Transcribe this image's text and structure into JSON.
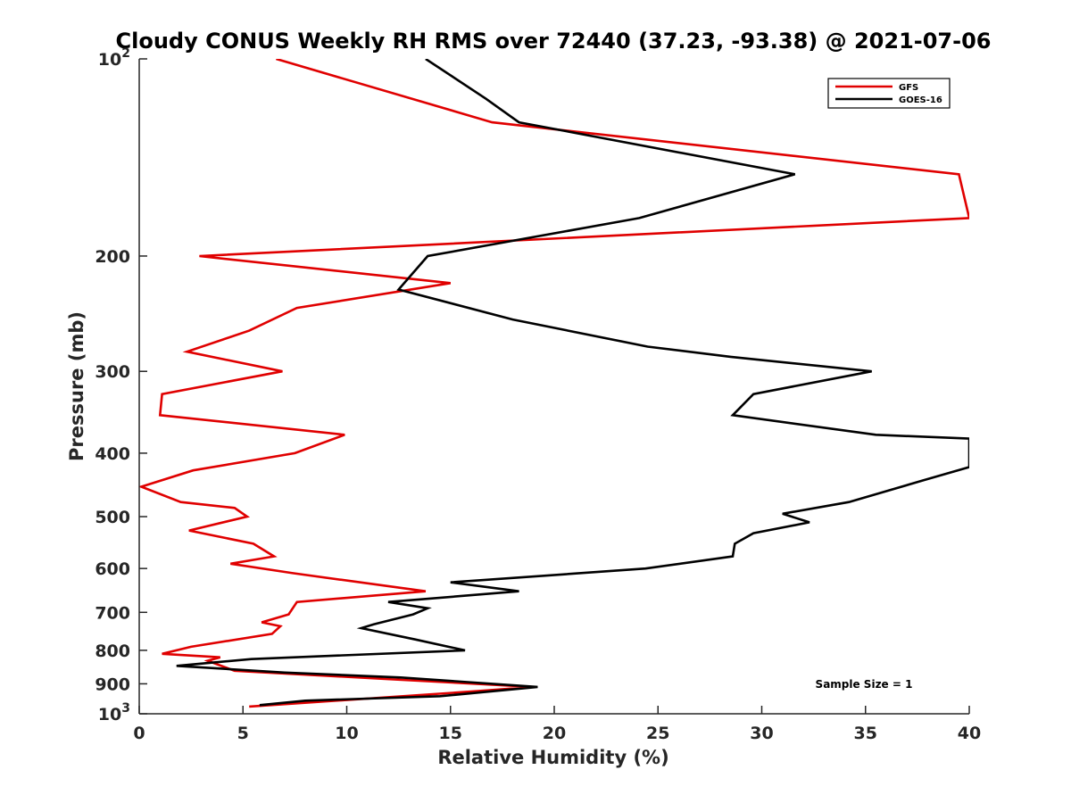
{
  "chart_data": {
    "type": "line",
    "title": "Cloudy CONUS Weekly RH RMS over 72440 (37.23, -93.38) @ 2021-07-06",
    "xlabel": "Relative Humidity (%)",
    "ylabel": "Pressure (mb)",
    "xlim": [
      0,
      40
    ],
    "ylim": [
      100,
      1000
    ],
    "y_scale": "log",
    "y_reversed": true,
    "x_ticks": [
      0,
      5,
      10,
      15,
      20,
      25,
      30,
      35,
      40
    ],
    "x_tick_labels": [
      "0",
      "5",
      "10",
      "15",
      "20",
      "25",
      "30",
      "35",
      "40"
    ],
    "y_ticks": [
      100,
      200,
      300,
      400,
      500,
      600,
      700,
      800,
      900,
      1000
    ],
    "y_tick_labels": [
      {
        "base": "10",
        "exp": "2"
      },
      {
        "base": "200"
      },
      {
        "base": "300"
      },
      {
        "base": "400"
      },
      {
        "base": "500"
      },
      {
        "base": "600"
      },
      {
        "base": "700"
      },
      {
        "base": "800"
      },
      {
        "base": "900"
      },
      {
        "base": "10",
        "exp": "3"
      }
    ],
    "grid": false,
    "legend_position": "top-right",
    "annotation": "Sample Size = 1",
    "series": [
      {
        "name": "GFS",
        "color": "#e00000",
        "points": [
          [
            6.6,
            100
          ],
          [
            17.0,
            125
          ],
          [
            39.5,
            150
          ],
          [
            40.0,
            175
          ],
          [
            2.9,
            200
          ],
          [
            15.0,
            220
          ],
          [
            7.6,
            240
          ],
          [
            5.3,
            260
          ],
          [
            2.3,
            280
          ],
          [
            6.9,
            300
          ],
          [
            1.1,
            325
          ],
          [
            1.0,
            350
          ],
          [
            9.9,
            375
          ],
          [
            7.5,
            400
          ],
          [
            2.6,
            425
          ],
          [
            0.1,
            450
          ],
          [
            2.0,
            475
          ],
          [
            4.6,
            485
          ],
          [
            5.2,
            500
          ],
          [
            2.4,
            525
          ],
          [
            5.5,
            550
          ],
          [
            6.5,
            575
          ],
          [
            4.4,
            590
          ],
          [
            7.4,
            610
          ],
          [
            13.8,
            650
          ],
          [
            7.6,
            675
          ],
          [
            7.2,
            705
          ],
          [
            5.9,
            725
          ],
          [
            6.8,
            735
          ],
          [
            6.4,
            755
          ],
          [
            2.5,
            790
          ],
          [
            1.1,
            810
          ],
          [
            3.9,
            820
          ],
          [
            3.3,
            830
          ],
          [
            4.6,
            860
          ],
          [
            19.0,
            910
          ],
          [
            16.0,
            925
          ],
          [
            5.3,
            975
          ]
        ]
      },
      {
        "name": "GOES-16",
        "color": "#000000",
        "points": [
          [
            13.8,
            100
          ],
          [
            16.7,
            115
          ],
          [
            18.3,
            125
          ],
          [
            31.6,
            150
          ],
          [
            24.1,
            175
          ],
          [
            13.9,
            200
          ],
          [
            12.5,
            225
          ],
          [
            18.0,
            250
          ],
          [
            24.5,
            275
          ],
          [
            28.5,
            285
          ],
          [
            35.3,
            300
          ],
          [
            29.6,
            325
          ],
          [
            28.6,
            350
          ],
          [
            35.5,
            375
          ],
          [
            40.0,
            380
          ],
          [
            40.0,
            420
          ],
          [
            37.8,
            440
          ],
          [
            34.2,
            475
          ],
          [
            31.0,
            495
          ],
          [
            32.3,
            510
          ],
          [
            29.6,
            530
          ],
          [
            28.7,
            550
          ],
          [
            28.6,
            575
          ],
          [
            24.4,
            600
          ],
          [
            15.0,
            630
          ],
          [
            18.3,
            650
          ],
          [
            12.0,
            675
          ],
          [
            13.9,
            690
          ],
          [
            13.2,
            705
          ],
          [
            11.3,
            730
          ],
          [
            10.7,
            740
          ],
          [
            13.3,
            770
          ],
          [
            15.7,
            800
          ],
          [
            5.4,
            825
          ],
          [
            1.8,
            845
          ],
          [
            7.0,
            865
          ],
          [
            12.6,
            880
          ],
          [
            19.2,
            910
          ],
          [
            14.5,
            940
          ],
          [
            8.0,
            955
          ],
          [
            5.8,
            970
          ]
        ]
      }
    ]
  }
}
